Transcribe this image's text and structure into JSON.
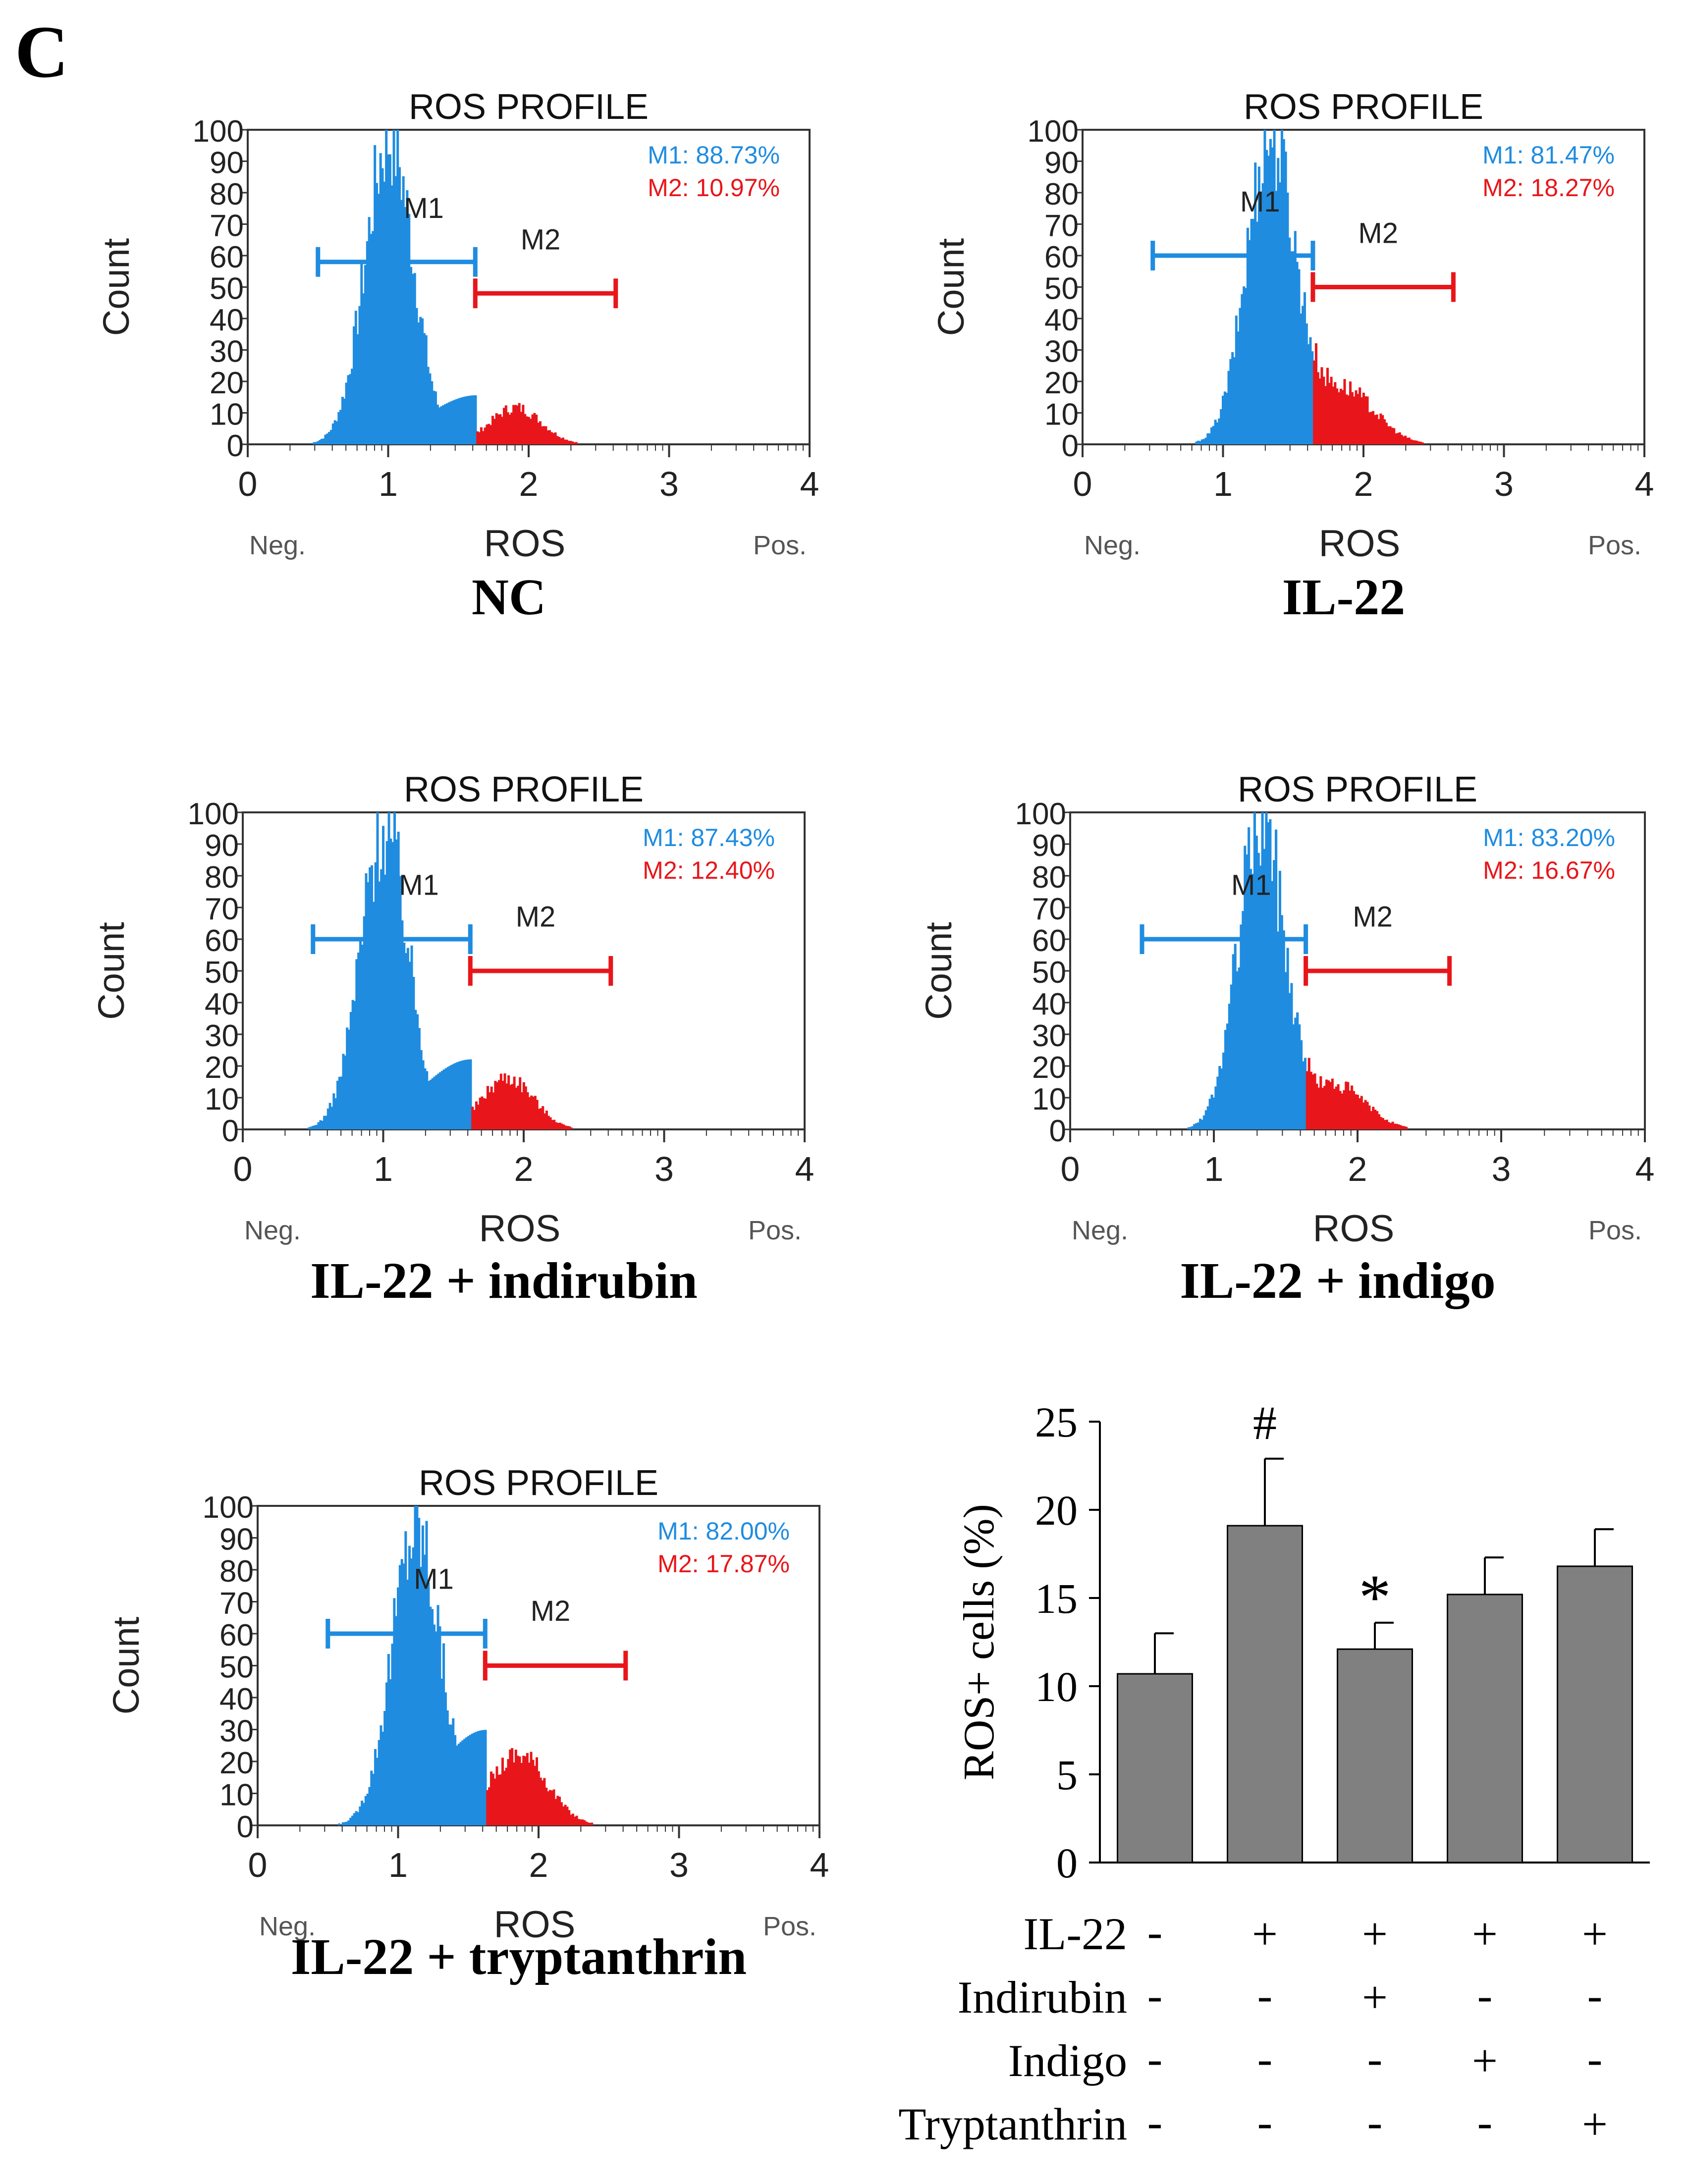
{
  "figure": {
    "panel_letter": "C"
  },
  "chart_data": [
    {
      "type": "histogram",
      "title": "ROS PROFILE",
      "ylabel": "Count",
      "xlabel": "ROS",
      "x_left_note": "Neg.",
      "x_right_note": "Pos.",
      "caption": "NC",
      "xlim": [
        0,
        4
      ],
      "ylim": [
        0,
        100
      ],
      "xticks": [
        "0",
        "1",
        "2",
        "3",
        "4"
      ],
      "yticks": [
        "0",
        "10",
        "20",
        "30",
        "40",
        "50",
        "60",
        "70",
        "80",
        "90",
        "100"
      ],
      "peak_x": 1.0,
      "peak_y": 100,
      "spread": 0.17,
      "tail_x": 1.9,
      "tail_y": 12,
      "tail_spread": 0.18,
      "gates": [
        {
          "label": "M1",
          "range": [
            0.5,
            1.62
          ],
          "level": 58,
          "color": "#1f8ce0"
        },
        {
          "label": "M2",
          "range": [
            1.62,
            2.62
          ],
          "level": 48,
          "color": "#e8161a"
        }
      ],
      "stats": [
        {
          "text": "M1: 88.73%",
          "color": "#1f8ce0"
        },
        {
          "text": "M2: 10.97%",
          "color": "#e8161a"
        }
      ]
    },
    {
      "type": "histogram",
      "title": "ROS PROFILE",
      "ylabel": "Count",
      "xlabel": "ROS",
      "x_left_note": "Neg.",
      "x_right_note": "Pos.",
      "caption": "IL-22",
      "xlim": [
        0,
        4
      ],
      "ylim": [
        0,
        100
      ],
      "xticks": [
        "0",
        "1",
        "2",
        "3",
        "4"
      ],
      "yticks": [
        "0",
        "10",
        "20",
        "30",
        "40",
        "50",
        "60",
        "70",
        "80",
        "90",
        "100"
      ],
      "peak_x": 1.33,
      "peak_y": 100,
      "spread": 0.17,
      "tail_x": 1.85,
      "tail_y": 18,
      "tail_spread": 0.22,
      "gates": [
        {
          "label": "M1",
          "range": [
            0.5,
            1.64
          ],
          "level": 60,
          "color": "#1f8ce0"
        },
        {
          "label": "M2",
          "range": [
            1.64,
            2.64
          ],
          "level": 50,
          "color": "#e8161a"
        }
      ],
      "stats": [
        {
          "text": "M1: 81.47%",
          "color": "#1f8ce0"
        },
        {
          "text": "M2: 18.27%",
          "color": "#e8161a"
        }
      ]
    },
    {
      "type": "histogram",
      "title": "ROS PROFILE",
      "ylabel": "Count",
      "xlabel": "ROS",
      "x_left_note": "Neg.",
      "x_right_note": "Pos.",
      "caption": "IL-22 + indirubin",
      "xlim": [
        0,
        4
      ],
      "ylim": [
        0,
        100
      ],
      "xticks": [
        "0",
        "1",
        "2",
        "3",
        "4"
      ],
      "yticks": [
        "0",
        "10",
        "20",
        "30",
        "40",
        "50",
        "60",
        "70",
        "80",
        "90",
        "100"
      ],
      "peak_x": 1.0,
      "peak_y": 98,
      "spread": 0.17,
      "tail_x": 1.88,
      "tail_y": 17,
      "tail_spread": 0.18,
      "gates": [
        {
          "label": "M1",
          "range": [
            0.5,
            1.62
          ],
          "level": 60,
          "color": "#1f8ce0"
        },
        {
          "label": "M2",
          "range": [
            1.62,
            2.62
          ],
          "level": 50,
          "color": "#e8161a"
        }
      ],
      "stats": [
        {
          "text": "M1: 87.43%",
          "color": "#1f8ce0"
        },
        {
          "text": "M2: 12.40%",
          "color": "#e8161a"
        }
      ]
    },
    {
      "type": "histogram",
      "title": "ROS PROFILE",
      "ylabel": "Count",
      "xlabel": "ROS",
      "x_left_note": "Neg.",
      "x_right_note": "Pos.",
      "caption": "IL-22 + indigo",
      "xlim": [
        0,
        4
      ],
      "ylim": [
        0,
        100
      ],
      "xticks": [
        "0",
        "1",
        "2",
        "3",
        "4"
      ],
      "yticks": [
        "0",
        "10",
        "20",
        "30",
        "40",
        "50",
        "60",
        "70",
        "80",
        "90",
        "100"
      ],
      "peak_x": 1.32,
      "peak_y": 100,
      "spread": 0.16,
      "tail_x": 1.85,
      "tail_y": 14,
      "tail_spread": 0.2,
      "gates": [
        {
          "label": "M1",
          "range": [
            0.5,
            1.64
          ],
          "level": 60,
          "color": "#1f8ce0"
        },
        {
          "label": "M2",
          "range": [
            1.64,
            2.64
          ],
          "level": 50,
          "color": "#e8161a"
        }
      ],
      "stats": [
        {
          "text": "M1: 83.20%",
          "color": "#1f8ce0"
        },
        {
          "text": "M2: 16.67%",
          "color": "#e8161a"
        }
      ]
    },
    {
      "type": "histogram",
      "title": "ROS PROFILE",
      "ylabel": "Count",
      "xlabel": "ROS",
      "x_left_note": "Neg.",
      "x_right_note": "Pos.",
      "caption": "IL-22 + tryptanthrin",
      "xlim": [
        0,
        4
      ],
      "ylim": [
        0,
        100
      ],
      "xticks": [
        "0",
        "1",
        "2",
        "3",
        "4"
      ],
      "yticks": [
        "0",
        "10",
        "20",
        "30",
        "40",
        "50",
        "60",
        "70",
        "80",
        "90",
        "100"
      ],
      "peak_x": 1.12,
      "peak_y": 96,
      "spread": 0.17,
      "tail_x": 1.85,
      "tail_y": 23,
      "tail_spread": 0.2,
      "gates": [
        {
          "label": "M1",
          "range": [
            0.5,
            1.62
          ],
          "level": 60,
          "color": "#1f8ce0"
        },
        {
          "label": "M2",
          "range": [
            1.62,
            2.62
          ],
          "level": 50,
          "color": "#e8161a"
        }
      ],
      "stats": [
        {
          "text": "M1: 82.00%",
          "color": "#1f8ce0"
        },
        {
          "text": "M2: 17.87%",
          "color": "#e8161a"
        }
      ]
    },
    {
      "type": "bar",
      "ylabel": "ROS+ cells (%)",
      "ylim": [
        0,
        25
      ],
      "yticks": [
        "0",
        "5",
        "10",
        "15",
        "20",
        "25"
      ],
      "values": [
        10.7,
        19.1,
        12.1,
        15.2,
        16.8
      ],
      "errors": [
        2.3,
        3.8,
        1.5,
        2.1,
        2.1
      ],
      "markers": [
        "",
        "#",
        "*",
        "",
        ""
      ],
      "bar_color": "#808080",
      "treatment_rows": [
        {
          "label": "IL-22",
          "signs": [
            "-",
            "+",
            "+",
            "+",
            "+"
          ]
        },
        {
          "label": "Indirubin",
          "signs": [
            "-",
            "-",
            "+",
            "-",
            "-"
          ]
        },
        {
          "label": "Indigo",
          "signs": [
            "-",
            "-",
            "-",
            "+",
            "-"
          ]
        },
        {
          "label": "Tryptanthrin",
          "signs": [
            "-",
            "-",
            "-",
            "-",
            "+"
          ]
        }
      ]
    }
  ]
}
